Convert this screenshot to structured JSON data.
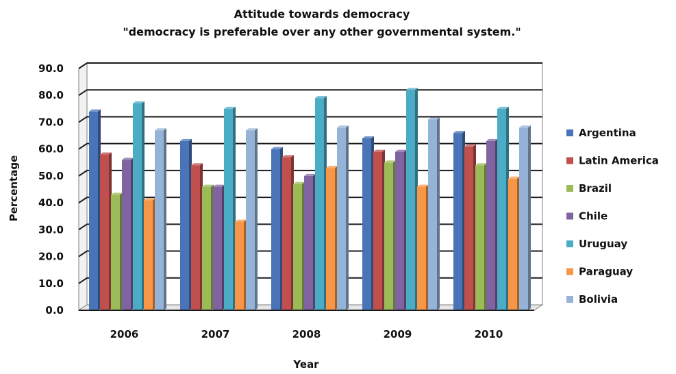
{
  "chart_data": {
    "type": "bar",
    "title": "Attitude towards democracy",
    "subtitle": "\"democracy is preferable over any other governmental system.\"",
    "xlabel": "Year",
    "ylabel": "Percentage",
    "categories": [
      "2006",
      "2007",
      "2008",
      "2009",
      "2010"
    ],
    "ylim": [
      0,
      90
    ],
    "yticks": [
      "0.0",
      "10.0",
      "20.0",
      "30.0",
      "40.0",
      "50.0",
      "60.0",
      "70.0",
      "80.0",
      "90.0"
    ],
    "grid": true,
    "legend_position": "right",
    "series": [
      {
        "name": "Argentina",
        "color": "#4a74b8",
        "values": [
          74,
          63,
          60,
          64,
          66
        ]
      },
      {
        "name": "Latin America",
        "color": "#c0504d",
        "values": [
          58,
          54,
          57,
          59,
          61
        ]
      },
      {
        "name": "Brazil",
        "color": "#9bbb59",
        "values": [
          43,
          46,
          47,
          55,
          54
        ]
      },
      {
        "name": "Chile",
        "color": "#8064a2",
        "values": [
          56,
          46,
          50,
          59,
          63
        ]
      },
      {
        "name": "Uruguay",
        "color": "#4bacc6",
        "values": [
          77,
          75,
          79,
          82,
          75
        ]
      },
      {
        "name": "Paraguay",
        "color": "#f79646",
        "values": [
          41,
          33,
          53,
          46,
          49
        ]
      },
      {
        "name": "Bolivia",
        "color": "#95b3d7",
        "values": [
          67,
          67,
          68,
          71,
          68
        ]
      }
    ]
  }
}
